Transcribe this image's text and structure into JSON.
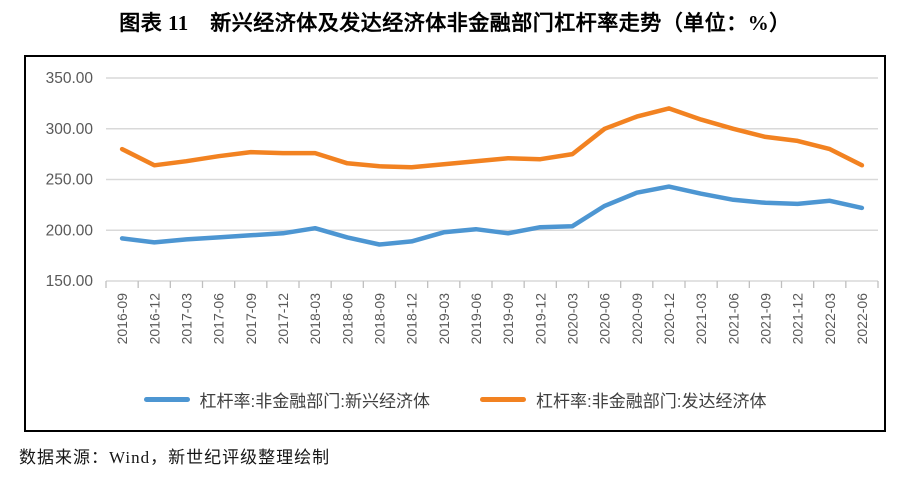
{
  "title": "图表 11　新兴经济体及发达经济体非金融部门杠杆率走势（单位：%）",
  "source_note": "数据来源：Wind，新世纪评级整理绘制",
  "colors": {
    "emerging_line": "#4D96D2",
    "developed_line": "#F28221",
    "gridline": "#D9D9D9",
    "tick": "#BFBFBF",
    "axis_text": "#595959",
    "border": "#000000"
  },
  "chart_data": {
    "type": "line",
    "categories": [
      "2016-09",
      "2016-12",
      "2017-03",
      "2017-06",
      "2017-09",
      "2017-12",
      "2018-03",
      "2018-06",
      "2018-09",
      "2018-12",
      "2019-03",
      "2019-06",
      "2019-09",
      "2019-12",
      "2020-03",
      "2020-06",
      "2020-09",
      "2020-12",
      "2021-03",
      "2021-06",
      "2021-09",
      "2021-12",
      "2022-03",
      "2022-06"
    ],
    "series": [
      {
        "name": "杠杆率:非金融部门:新兴经济体",
        "color": "#4D96D2",
        "values": [
          192,
          188,
          191,
          193,
          195,
          197,
          202,
          193,
          186,
          189,
          198,
          201,
          197,
          203,
          204,
          224,
          237,
          243,
          236,
          230,
          227,
          226,
          229,
          222
        ]
      },
      {
        "name": "杠杆率:非金融部门:发达经济体",
        "color": "#F28221",
        "values": [
          280,
          264,
          268,
          273,
          277,
          276,
          276,
          266,
          263,
          262,
          265,
          268,
          271,
          270,
          275,
          300,
          312,
          320,
          309,
          300,
          292,
          288,
          280,
          264
        ]
      }
    ],
    "ylim": [
      150,
      350
    ],
    "ytick_step": 50,
    "ytick_labels_top_down": [
      "350.00",
      "300.00",
      "250.00",
      "200.00",
      "150.00"
    ],
    "grid": true,
    "legend_position": "bottom",
    "x_labels_rotated": true
  }
}
